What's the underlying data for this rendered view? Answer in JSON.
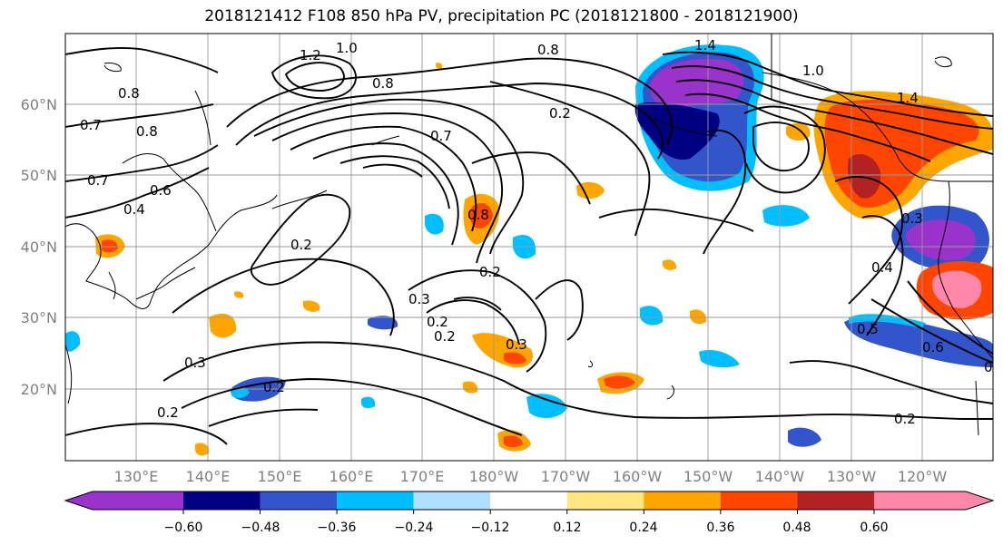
{
  "title": "2018121412 F108 850 hPa PV, precipitation PC (2018121800 - 2018121900)",
  "map": {
    "lat_labels": [
      "60°N",
      "50°N",
      "40°N",
      "30°N",
      "20°N"
    ],
    "lon_labels": [
      "130°E",
      "140°E",
      "150°E",
      "160°E",
      "170°E",
      "180°W",
      "170°W",
      "160°W",
      "150°W",
      "140°W",
      "130°W",
      "120°W"
    ],
    "contour_labels": [
      "1.0",
      "1.2",
      "0.8",
      "1.4",
      "0.8",
      "0.8",
      "0.7",
      "0.8",
      "0.8",
      "0.7",
      "0.6",
      "0.4",
      "0.2",
      "0.2",
      "0.7",
      "0.2",
      "0.3",
      "0.2",
      "0.3",
      "0.2",
      "0.3",
      "0.2",
      "0.2",
      "1.0",
      "1.4",
      "0.3",
      "0.4",
      "0.5",
      "0.6",
      "0",
      "0.2"
    ]
  },
  "colorbar": {
    "tick_labels": [
      "−0.60",
      "−0.48",
      "−0.36",
      "−0.24",
      "−0.12",
      "0.12",
      "0.24",
      "0.36",
      "0.48",
      "0.60"
    ],
    "colors": [
      "#9933cc",
      "#000080",
      "#3355cc",
      "#00bfff",
      "#b0e0ff",
      "#ffffff",
      "#ffe680",
      "#ffa500",
      "#ff4500",
      "#b22222",
      "#ff88aa"
    ]
  }
}
